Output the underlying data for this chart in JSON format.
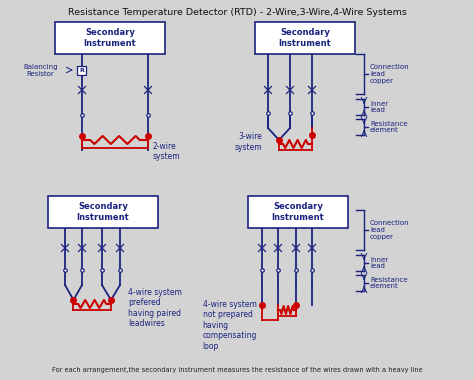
{
  "title": "Resistance Temperature Detector (RTD) - 2-Wire,3-Wire,4-Wire Systems",
  "footer": "For each arrangement,the secondary instrument measures the resistance of the wires drawn with a heavy line",
  "bg_color": "#d3d3d3",
  "box_color": "#1a237e",
  "wire_blue": "#1a237e",
  "wire_red": "#cc0000",
  "text_color": "#1a237e",
  "box_fill": "#ffffff",
  "title_color": "#111111",
  "labels": {
    "2wire": "2-wire\nsystem",
    "3wire": "3-wire\nsystem",
    "4wire_pref": "4-wire system\nprefered\nhaving paired\nleadwires",
    "4wire_comp": "4-wire system\nnot prepared\nhaving\ncompensating\nloop",
    "balancing": "Balancing\nResistor",
    "conn_lead": "Connection\nlead\ncopper",
    "inner_lead": "Inner\nlead",
    "resist_elem": "Resistance\nelement",
    "secondary": "Secondary\nInstrument"
  }
}
